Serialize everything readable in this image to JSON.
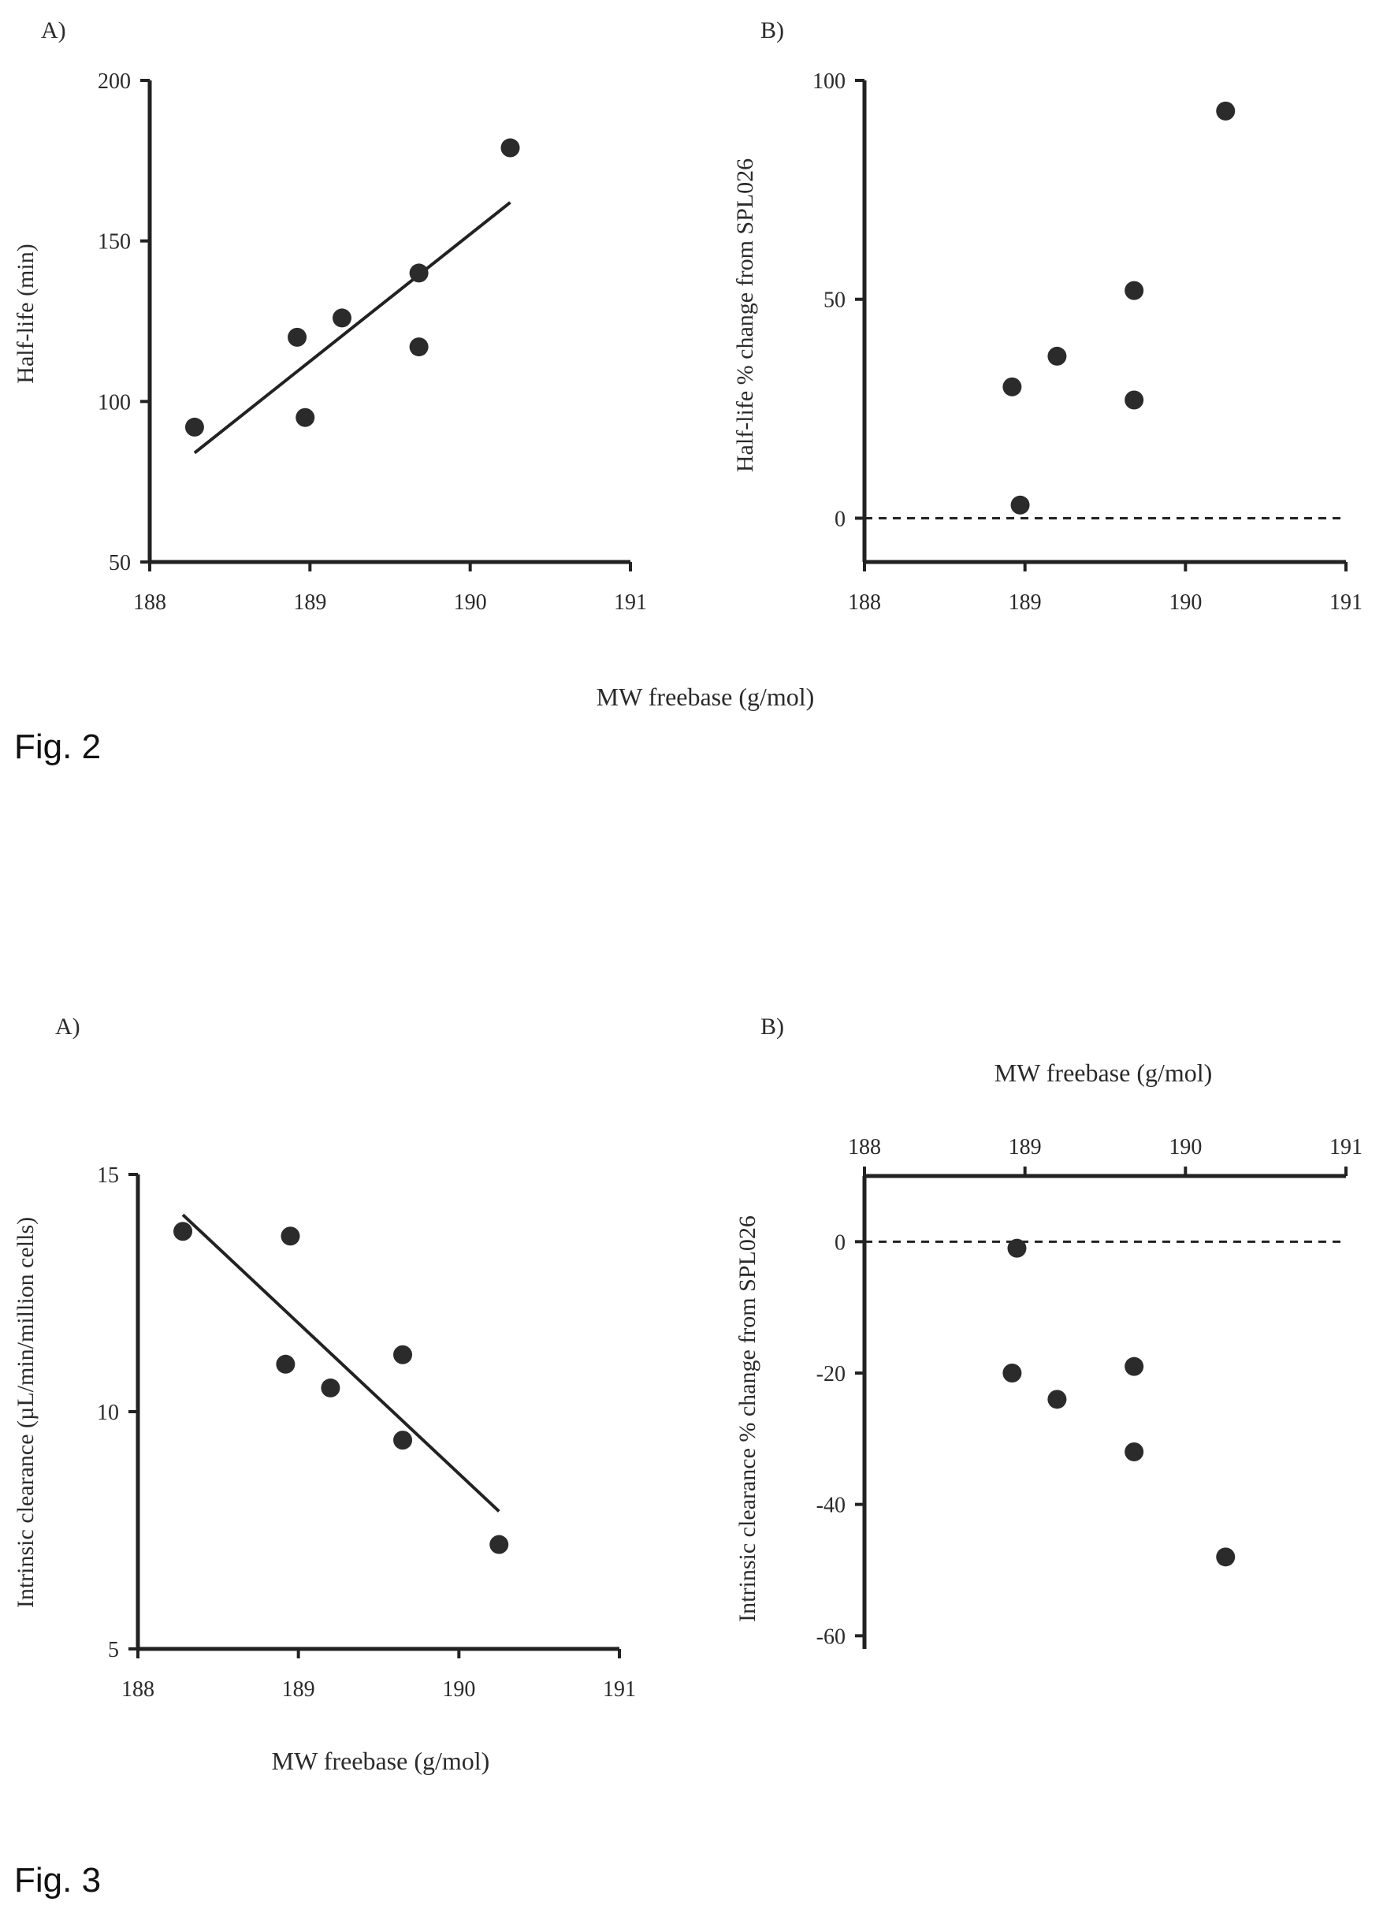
{
  "figures": [
    {
      "label": "Fig. 2",
      "xlabel": "MW freebase (g/mol)"
    },
    {
      "label": "Fig. 3"
    }
  ],
  "chart_data": [
    {
      "type": "scatter",
      "figure": "Fig. 2",
      "panel": "A)",
      "xlabel": "",
      "ylabel": "Half-life (min)",
      "xlim": [
        188,
        191
      ],
      "ylim": [
        50,
        200
      ],
      "xticks": [
        "188",
        "189",
        "190",
        "191"
      ],
      "yticks": [
        "50",
        "100",
        "150",
        "200"
      ],
      "x_axis_position": "bottom",
      "points": [
        {
          "x": 188.28,
          "y": 92
        },
        {
          "x": 188.92,
          "y": 120
        },
        {
          "x": 188.97,
          "y": 95
        },
        {
          "x": 189.2,
          "y": 126
        },
        {
          "x": 189.68,
          "y": 140
        },
        {
          "x": 189.68,
          "y": 117
        },
        {
          "x": 190.25,
          "y": 179
        }
      ],
      "fit_line": [
        {
          "x": 188.28,
          "y": 84
        },
        {
          "x": 190.25,
          "y": 162
        }
      ],
      "zero_line": false
    },
    {
      "type": "scatter",
      "figure": "Fig. 2",
      "panel": "B)",
      "xlabel": "",
      "ylabel": "Half-life % change from SPL026",
      "xlim": [
        188,
        191
      ],
      "ylim": [
        -10,
        100
      ],
      "xticks": [
        "188",
        "189",
        "190",
        "191"
      ],
      "yticks": [
        "0",
        "50",
        "100"
      ],
      "x_axis_position": "bottom",
      "points": [
        {
          "x": 188.92,
          "y": 30
        },
        {
          "x": 188.97,
          "y": 3
        },
        {
          "x": 189.2,
          "y": 37
        },
        {
          "x": 189.68,
          "y": 52
        },
        {
          "x": 189.68,
          "y": 27
        },
        {
          "x": 190.25,
          "y": 93
        }
      ],
      "zero_line": true
    },
    {
      "type": "scatter",
      "figure": "Fig. 3",
      "panel": "A)",
      "xlabel": "MW freebase (g/mol)",
      "ylabel": "Intrinsic clearance (µL/min/million cells)",
      "xlim": [
        188,
        191
      ],
      "ylim": [
        5,
        15
      ],
      "xticks": [
        "188",
        "189",
        "190",
        "191"
      ],
      "yticks": [
        "5",
        "10",
        "15"
      ],
      "x_axis_position": "bottom",
      "points": [
        {
          "x": 188.28,
          "y": 13.8
        },
        {
          "x": 188.92,
          "y": 11.0
        },
        {
          "x": 188.95,
          "y": 13.7
        },
        {
          "x": 189.2,
          "y": 10.5
        },
        {
          "x": 189.65,
          "y": 11.2
        },
        {
          "x": 189.65,
          "y": 9.4
        },
        {
          "x": 190.25,
          "y": 7.2
        }
      ],
      "fit_line": [
        {
          "x": 188.28,
          "y": 14.15
        },
        {
          "x": 190.25,
          "y": 7.9
        }
      ],
      "zero_line": false
    },
    {
      "type": "scatter",
      "figure": "Fig. 3",
      "panel": "B)",
      "xlabel": "MW freebase (g/mol)",
      "ylabel": "Intrinsic clearance % change from SPL026",
      "xlim": [
        188,
        191
      ],
      "ylim": [
        -62,
        10
      ],
      "xticks": [
        "188",
        "189",
        "190",
        "191"
      ],
      "yticks": [
        "0",
        "-20",
        "-40",
        "-60"
      ],
      "x_axis_position": "top",
      "points": [
        {
          "x": 188.95,
          "y": -1
        },
        {
          "x": 188.92,
          "y": -20
        },
        {
          "x": 189.2,
          "y": -24
        },
        {
          "x": 189.68,
          "y": -19
        },
        {
          "x": 189.68,
          "y": -32
        },
        {
          "x": 190.25,
          "y": -48
        }
      ],
      "zero_line": true
    }
  ]
}
